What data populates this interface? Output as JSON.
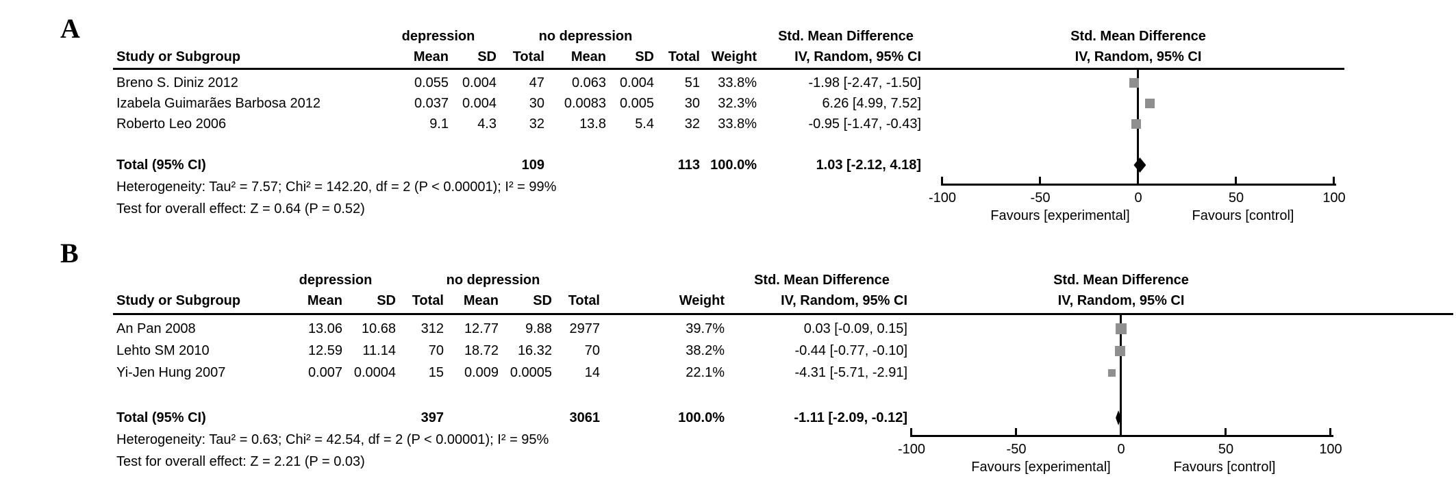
{
  "figure": {
    "panels": [
      {
        "label": "A",
        "group_headers": {
          "experimental": "depression",
          "control": "no depression",
          "effect": "Std. Mean Difference",
          "plot_effect": "Std. Mean Difference"
        },
        "column_headers": {
          "study": "Study or Subgroup",
          "mean1": "Mean",
          "sd1": "SD",
          "total1": "Total",
          "mean2": "Mean",
          "sd2": "SD",
          "total2": "Total",
          "weight": "Weight",
          "ci": "IV, Random, 95% CI",
          "plot_ci": "IV, Random, 95% CI"
        },
        "rows": [
          {
            "study": "Breno S. Diniz 2012",
            "mean1": "0.055",
            "sd1": "0.004",
            "total1": "47",
            "mean2": "0.063",
            "sd2": "0.004",
            "total2": "51",
            "weight": "33.8%",
            "ci": "-1.98 [-2.47, -1.50]"
          },
          {
            "study": "Izabela Guimarães Barbosa 2012",
            "mean1": "0.037",
            "sd1": "0.004",
            "total1": "30",
            "mean2": "0.0083",
            "sd2": "0.005",
            "total2": "30",
            "weight": "32.3%",
            "ci": "6.26 [4.99, 7.52]"
          },
          {
            "study": "Roberto Leo 2006",
            "mean1": "9.1",
            "sd1": "4.3",
            "total1": "32",
            "mean2": "13.8",
            "sd2": "5.4",
            "total2": "32",
            "weight": "33.8%",
            "ci": "-0.95 [-1.47, -0.43]"
          }
        ],
        "total_row": {
          "label": "Total (95% CI)",
          "total1": "109",
          "total2": "113",
          "weight": "100.0%",
          "ci": "1.03 [-2.12, 4.18]"
        },
        "heterogeneity": "Heterogeneity: Tau² = 7.57; Chi² = 142.20, df = 2 (P < 0.00001); I² = 99%",
        "overall_test": "Test for overall effect: Z = 0.64 (P = 0.52)",
        "axis_ticks": [
          "-100",
          "-50",
          "0",
          "50",
          "100"
        ],
        "favours_left": "Favours [experimental]",
        "favours_right": "Favours [control]"
      },
      {
        "label": "B",
        "group_headers": {
          "experimental": "depression",
          "control": "no depression",
          "effect": "Std. Mean Difference",
          "plot_effect": "Std. Mean Difference"
        },
        "column_headers": {
          "study": "Study or Subgroup",
          "mean1": "Mean",
          "sd1": "SD",
          "total1": "Total",
          "mean2": "Mean",
          "sd2": "SD",
          "total2": "Total",
          "weight": "Weight",
          "ci": "IV, Random, 95% CI",
          "plot_ci": "IV, Random, 95% CI"
        },
        "rows": [
          {
            "study": "An Pan 2008",
            "mean1": "13.06",
            "sd1": "10.68",
            "total1": "312",
            "mean2": "12.77",
            "sd2": "9.88",
            "total2": "2977",
            "weight": "39.7%",
            "ci": "0.03 [-0.09, 0.15]"
          },
          {
            "study": "Lehto SM 2010",
            "mean1": "12.59",
            "sd1": "11.14",
            "total1": "70",
            "mean2": "18.72",
            "sd2": "16.32",
            "total2": "70",
            "weight": "38.2%",
            "ci": "-0.44 [-0.77, -0.10]"
          },
          {
            "study": "Yi-Jen Hung 2007",
            "mean1": "0.007",
            "sd1": "0.0004",
            "total1": "15",
            "mean2": "0.009",
            "sd2": "0.0005",
            "total2": "14",
            "weight": "22.1%",
            "ci": "-4.31 [-5.71, -2.91]"
          }
        ],
        "total_row": {
          "label": "Total (95% CI)",
          "total1": "397",
          "total2": "3061",
          "weight": "100.0%",
          "ci": "-1.11 [-2.09, -0.12]"
        },
        "heterogeneity": "Heterogeneity: Tau² = 0.63; Chi² = 42.54, df = 2 (P < 0.00001); I² = 95%",
        "overall_test": "Test for overall effect: Z = 2.21 (P = 0.03)",
        "axis_ticks": [
          "-100",
          "-50",
          "0",
          "50",
          "100"
        ],
        "favours_left": "Favours [experimental]",
        "favours_right": "Favours [control]"
      }
    ]
  },
  "chart_data": [
    {
      "type": "forest",
      "panel": "A",
      "title": "Std. Mean Difference, IV, Random, 95% CI",
      "studies": [
        "Breno S. Diniz 2012",
        "Izabela Guimarães Barbosa 2012",
        "Roberto Leo 2006"
      ],
      "smd": [
        -1.98,
        6.26,
        -0.95
      ],
      "ci_low": [
        -2.47,
        4.99,
        -1.47
      ],
      "ci_high": [
        -1.5,
        7.52,
        -0.43
      ],
      "weights_pct": [
        33.8,
        32.3,
        33.8
      ],
      "total_smd": 1.03,
      "total_ci": [
        -2.12,
        4.18
      ],
      "xlim": [
        -100,
        100
      ],
      "ticks": [
        -100,
        -50,
        0,
        50,
        100
      ],
      "xlabel_left": "Favours [experimental]",
      "xlabel_right": "Favours [control]"
    },
    {
      "type": "forest",
      "panel": "B",
      "title": "Std. Mean Difference, IV, Random, 95% CI",
      "studies": [
        "An Pan 2008",
        "Lehto SM 2010",
        "Yi-Jen Hung 2007"
      ],
      "smd": [
        0.03,
        -0.44,
        -4.31
      ],
      "ci_low": [
        -0.09,
        -0.77,
        -5.71
      ],
      "ci_high": [
        0.15,
        -0.1,
        -2.91
      ],
      "weights_pct": [
        39.7,
        38.2,
        22.1
      ],
      "total_smd": -1.11,
      "total_ci": [
        -2.09,
        -0.12
      ],
      "xlim": [
        -100,
        100
      ],
      "ticks": [
        -100,
        -50,
        0,
        50,
        100
      ],
      "xlabel_left": "Favours [experimental]",
      "xlabel_right": "Favours [control]"
    }
  ]
}
